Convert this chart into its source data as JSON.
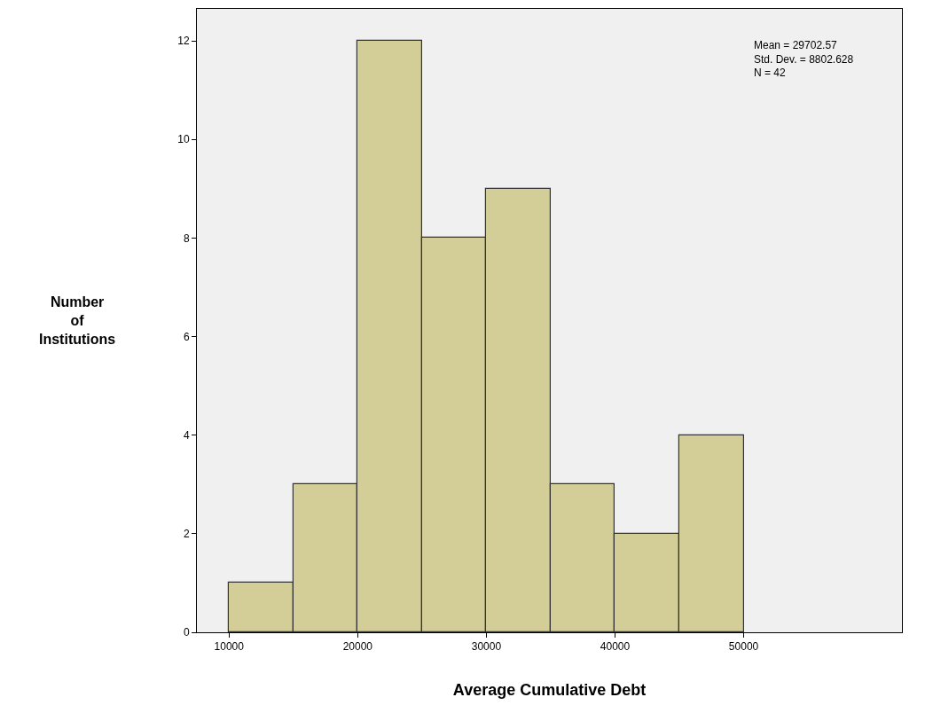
{
  "chart_data": {
    "type": "histogram",
    "xlabel": "Average Cumulative Debt",
    "ylabel": "Number\nof\nInstitutions",
    "bins": [
      10000,
      15000,
      20000,
      25000,
      30000,
      35000,
      40000,
      45000,
      50000
    ],
    "values": [
      1,
      3,
      12,
      8,
      9,
      3,
      2,
      4
    ],
    "color": "#d3ce97",
    "xlim": [
      7500,
      62300
    ],
    "xticks": [
      10000,
      20000,
      30000,
      40000,
      50000
    ],
    "ylim": [
      0,
      12.65
    ],
    "yticks": [
      0,
      2,
      4,
      6,
      8,
      10,
      12
    ],
    "grid": false,
    "legend": false,
    "annotations": [
      "Mean = 29702.57\nStd. Dev. = 8802.628\nN = 42"
    ]
  }
}
